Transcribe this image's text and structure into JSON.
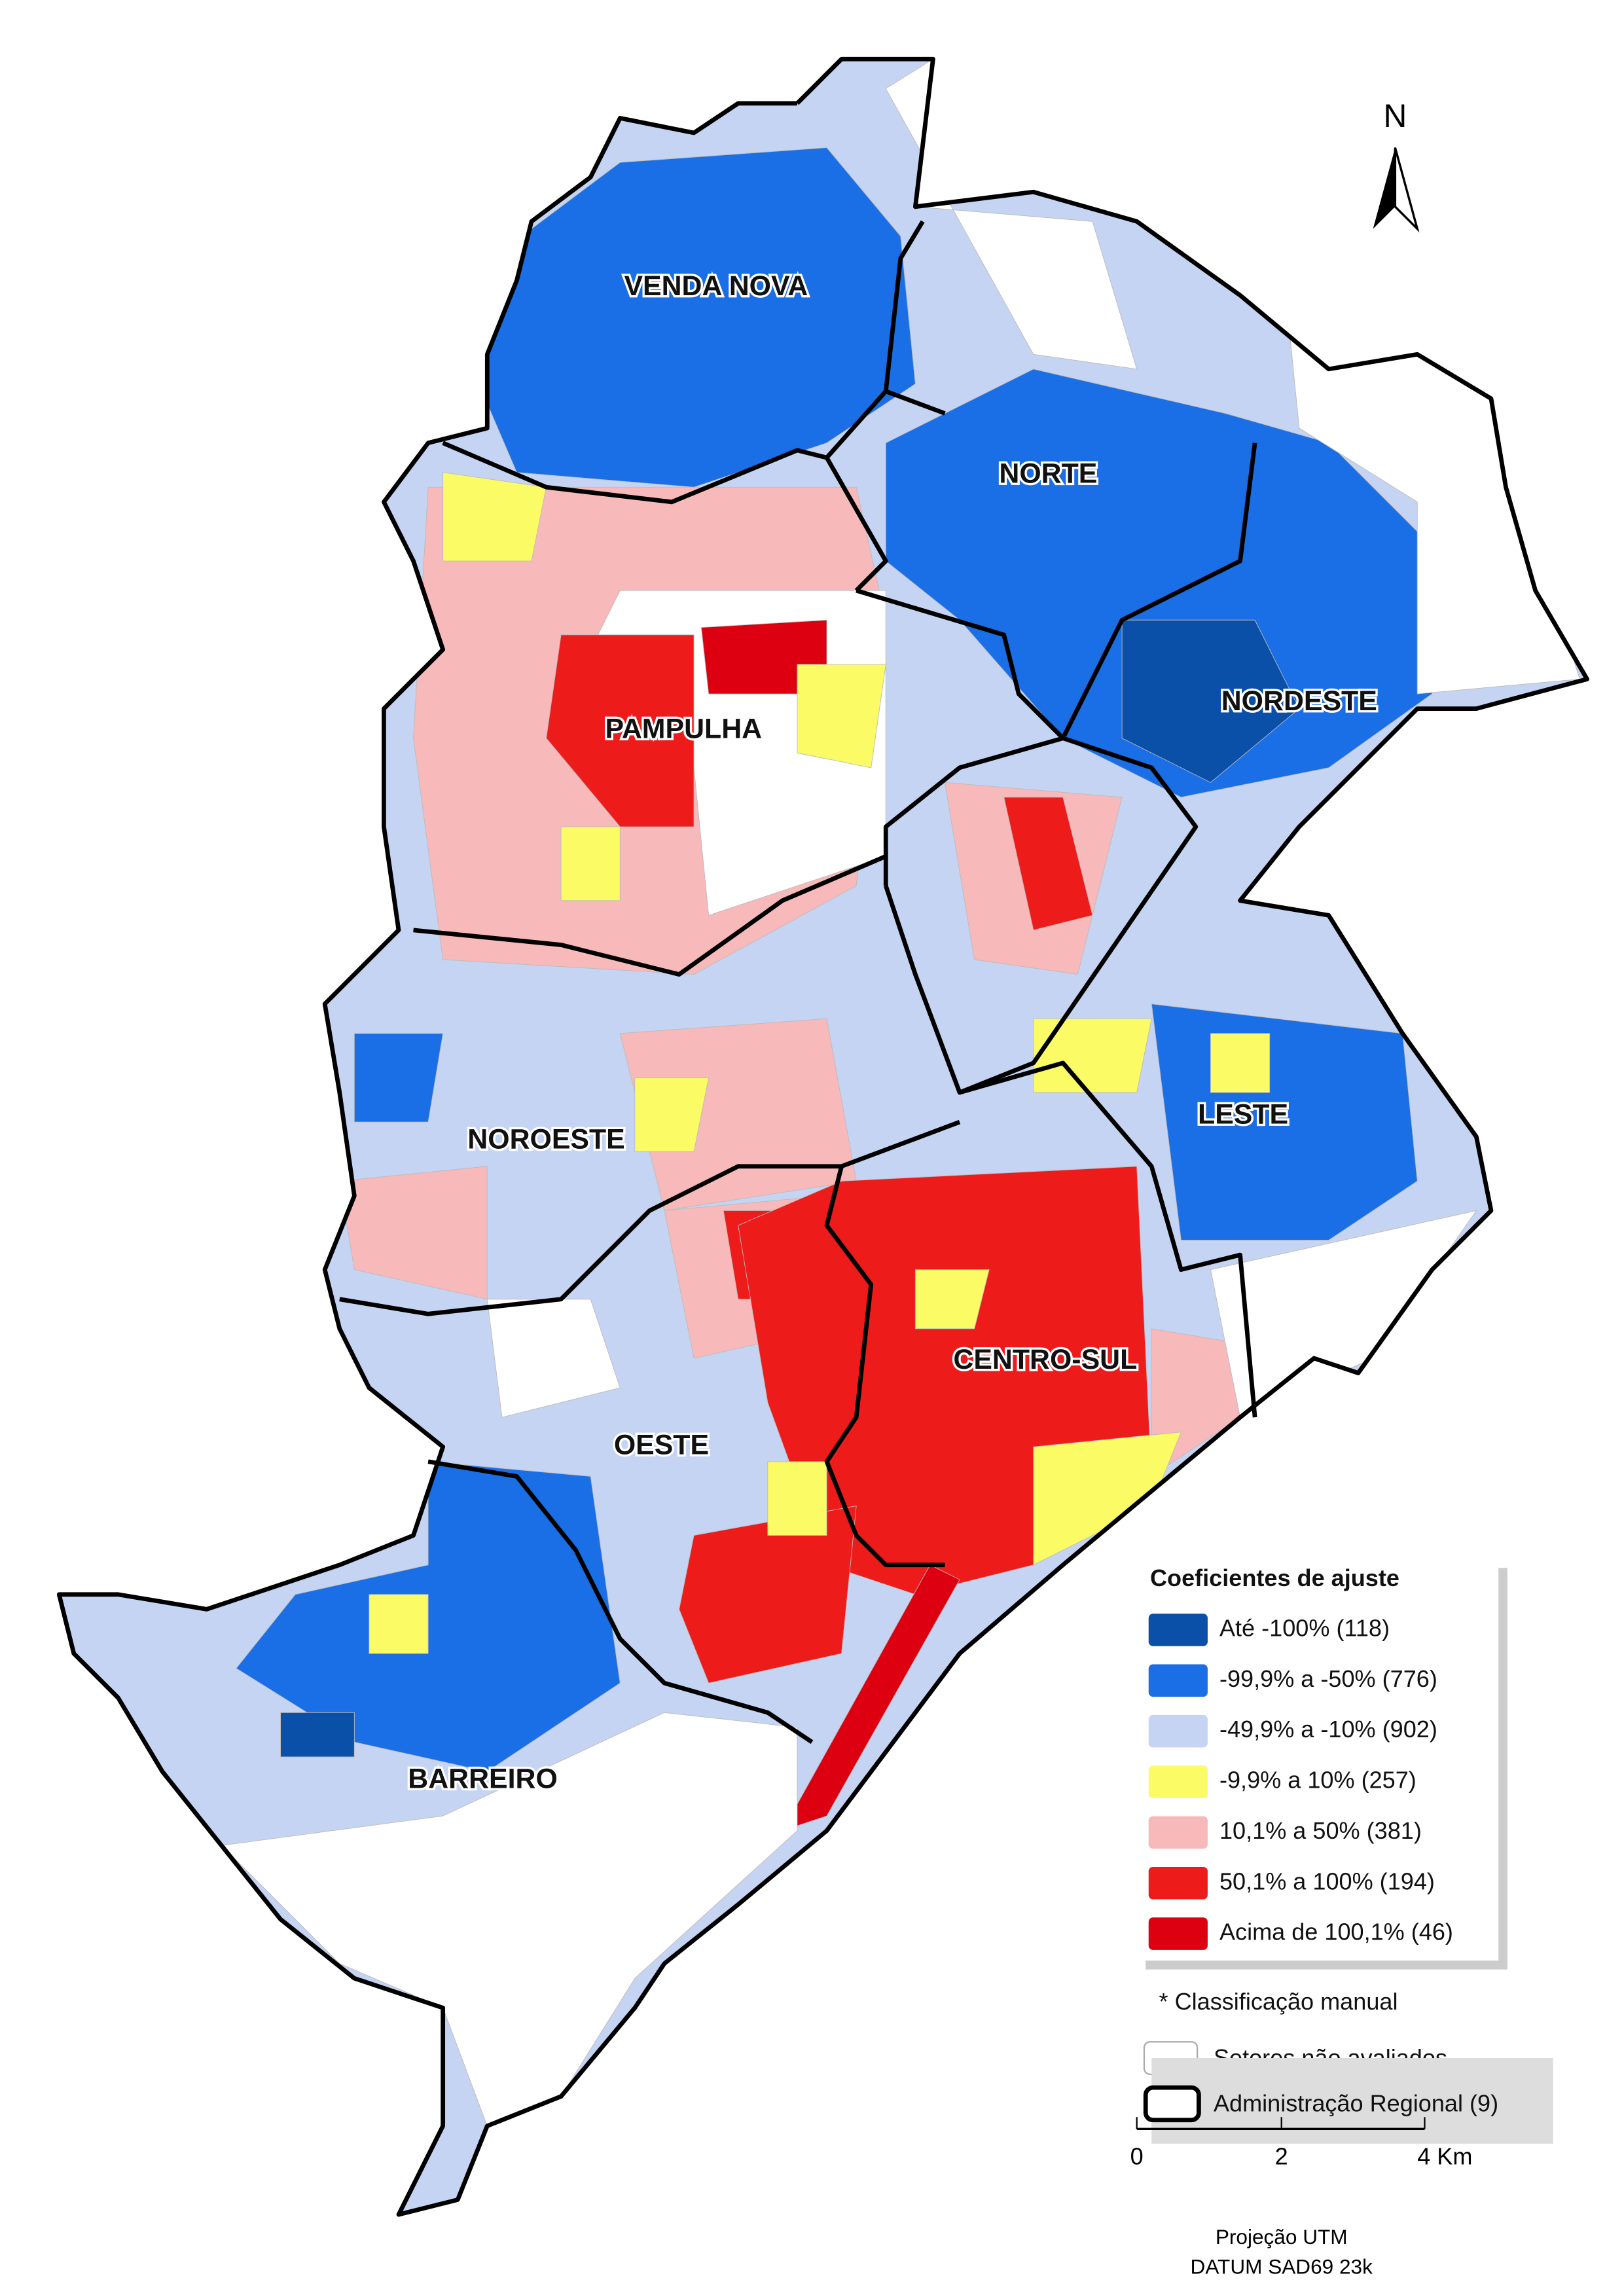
{
  "north": "N",
  "regions": [
    {
      "label": "VENDA NOVA"
    },
    {
      "label": "NORTE"
    },
    {
      "label": "NORDESTE"
    },
    {
      "label": "PAMPULHA"
    },
    {
      "label": "NOROESTE"
    },
    {
      "label": "LESTE"
    },
    {
      "label": "CENTRO-SUL"
    },
    {
      "label": "OESTE"
    },
    {
      "label": "BARREIRO"
    }
  ],
  "legend": {
    "title": "Coeficientes de ajuste",
    "items": [
      {
        "label": "Até -100% (118)",
        "color": "#0a4fa8"
      },
      {
        "label": "-99,9% a -50% (776)",
        "color": "#1a6ee6"
      },
      {
        "label": "-49,9% a -10% (902)",
        "color": "#c5d4f2"
      },
      {
        "label": "-9,9% a 10% (257)",
        "color": "#fbfb66"
      },
      {
        "label": "10,1% a 50% (381)",
        "color": "#f7b9b9"
      },
      {
        "label": "50,1% a 100% (194)",
        "color": "#ee1b1b"
      },
      {
        "label": "Acima de 100,1% (46)",
        "color": "#dc0010"
      }
    ],
    "note": "* Classificação manual",
    "unassessed": "Setores não avaliados",
    "boundary": "Administração Regional (9)"
  },
  "scale": {
    "ticks": [
      "0",
      "2",
      "4 Km"
    ],
    "projection": "Projeção UTM",
    "datum": "DATUM SAD69 23k"
  }
}
